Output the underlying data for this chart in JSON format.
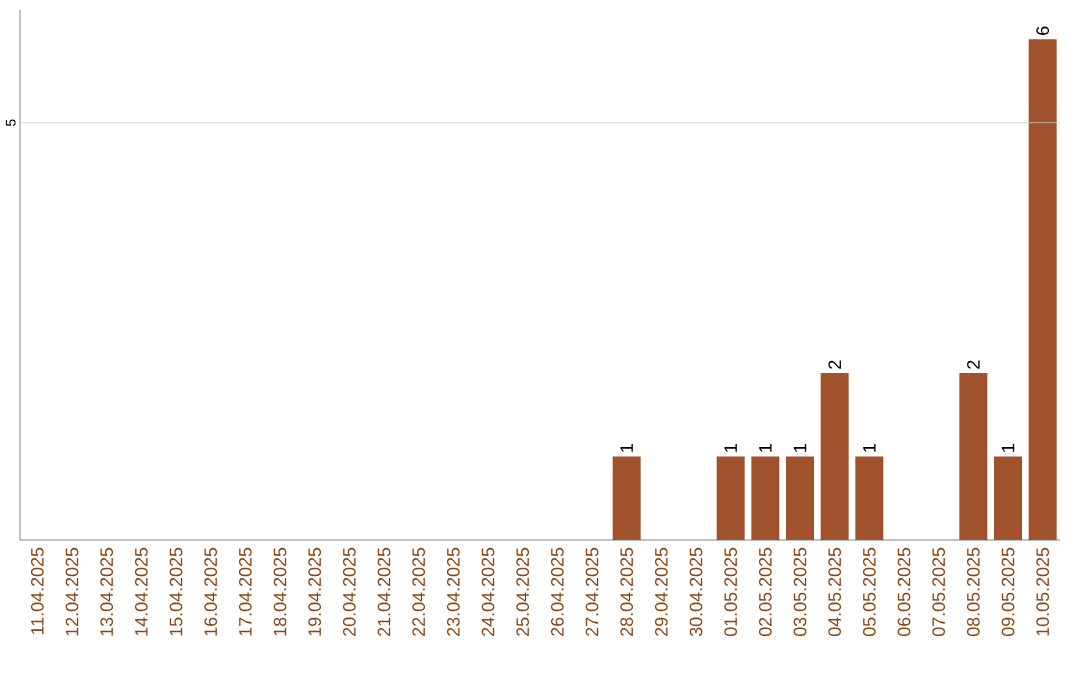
{
  "chart_data": {
    "type": "bar",
    "categories": [
      "11.04.2025",
      "12.04.2025",
      "13.04.2025",
      "14.04.2025",
      "15.04.2025",
      "16.04.2025",
      "17.04.2025",
      "18.04.2025",
      "19.04.2025",
      "20.04.2025",
      "21.04.2025",
      "22.04.2025",
      "23.04.2025",
      "24.04.2025",
      "25.04.2025",
      "26.04.2025",
      "27.04.2025",
      "28.04.2025",
      "29.04.2025",
      "30.04.2025",
      "01.05.2025",
      "02.05.2025",
      "03.05.2025",
      "04.05.2025",
      "05.05.2025",
      "06.05.2025",
      "07.05.2025",
      "08.05.2025",
      "09.05.2025",
      "10.05.2025"
    ],
    "values": [
      null,
      null,
      null,
      null,
      null,
      null,
      null,
      null,
      null,
      null,
      null,
      null,
      null,
      null,
      null,
      null,
      null,
      1,
      null,
      null,
      1,
      1,
      1,
      2,
      1,
      null,
      null,
      2,
      1,
      6
    ],
    "value_labels": [
      null,
      null,
      null,
      null,
      null,
      null,
      null,
      null,
      null,
      null,
      null,
      null,
      null,
      null,
      null,
      null,
      null,
      "1",
      null,
      null,
      "1",
      "1",
      "1",
      "2",
      "1",
      null,
      null,
      "2",
      "1",
      "6"
    ],
    "color": "#a0522d",
    "ylim": [
      0,
      6.35
    ],
    "ref_lines": [
      {
        "axis": "y",
        "value": 5,
        "label": "5",
        "color": "#cccccc"
      }
    ]
  }
}
